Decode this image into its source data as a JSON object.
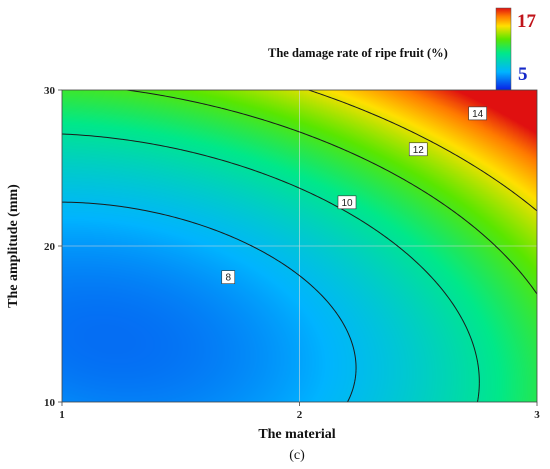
{
  "chart_data": {
    "type": "contour",
    "title": "The damage rate of ripe fruit (%)",
    "xlabel": "The material",
    "ylabel": "The amplitude (mm)",
    "xlim": [
      1,
      3
    ],
    "ylim": [
      10,
      30
    ],
    "x_ticks": [
      "1",
      "2",
      "3"
    ],
    "y_ticks": [
      "10",
      "20",
      "30"
    ],
    "colorbar": {
      "min": 5,
      "max": 17,
      "min_label": "5",
      "max_label": "17"
    },
    "contour_levels": [
      {
        "value": 8,
        "label": "8",
        "label_at": [
          1.7,
          18.0
        ]
      },
      {
        "value": 10,
        "label": "10",
        "label_at": [
          2.2,
          22.8
        ]
      },
      {
        "value": 12,
        "label": "12",
        "label_at": [
          2.5,
          26.2
        ]
      },
      {
        "value": 14,
        "label": "14",
        "label_at": [
          2.75,
          28.5
        ]
      }
    ],
    "surface": {
      "minimum_at": [
        1.2,
        14.0
      ],
      "minimum_value": 6.4,
      "corner_values": {
        "x1_y10": 7.0,
        "x3_y10": 11.0,
        "x1_y30": 11.3,
        "x3_y30": 16.0
      }
    },
    "grid": true,
    "legend": "top-right"
  },
  "panel_label": "(c)",
  "colors": {
    "contour_line": "#1a1a1a",
    "grid_line": "#d9d9d9",
    "legend_max_text": "#c0141a",
    "legend_min_text": "#1428c8"
  }
}
